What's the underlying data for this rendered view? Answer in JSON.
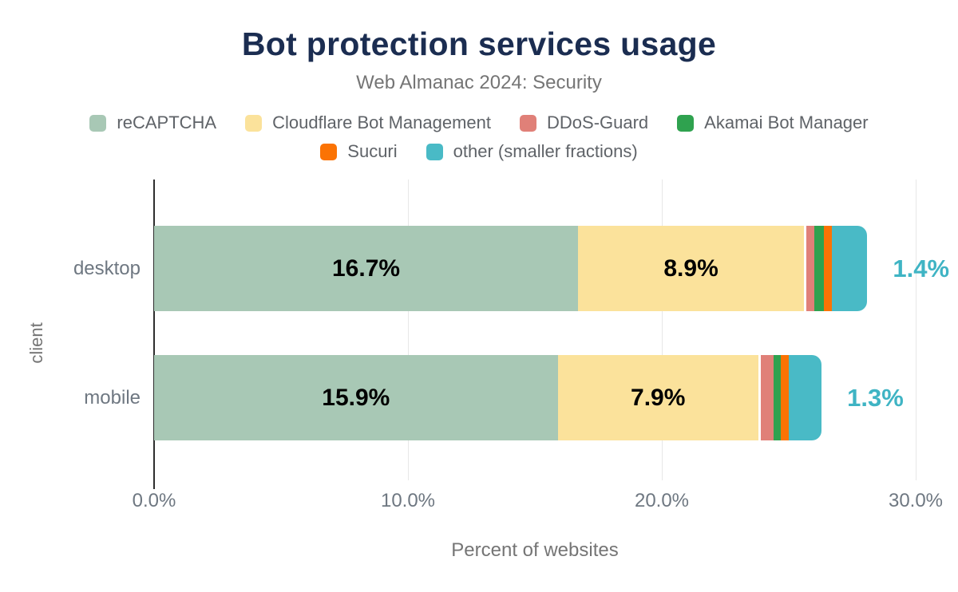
{
  "title": "Bot protection services usage",
  "subtitle": "Web Almanac 2024: Security",
  "x_axis": {
    "label": "Percent of websites",
    "tick_labels": [
      "0.0%",
      "10.0%",
      "20.0%",
      "30.0%"
    ],
    "tick_values": [
      0,
      10,
      20,
      30
    ]
  },
  "y_axis": {
    "label": "client",
    "categories": [
      "desktop",
      "mobile"
    ]
  },
  "colors": {
    "title": "#1b2d51",
    "subtitle": "#757575",
    "tick_text": "#6e7781",
    "legend_text": "#5f6368",
    "axis_line": "#2e2e2e",
    "gridline": "#e7e7e7",
    "inside_label": "#000000",
    "outside_label": "#3fb4c4",
    "background": "#ffffff"
  },
  "chart_data": {
    "type": "bar",
    "orientation": "horizontal",
    "stacked": true,
    "title": "Bot protection services usage",
    "subtitle": "Web Almanac 2024: Security",
    "xlabel": "Percent of websites",
    "ylabel": "client",
    "xlim": [
      0,
      30
    ],
    "grid": "vertical",
    "legend_position": "top",
    "legend_rows": [
      4,
      2
    ],
    "categories": [
      "desktop",
      "mobile"
    ],
    "x_tick_labels": [
      "0.0%",
      "10.0%",
      "20.0%",
      "30.0%"
    ],
    "x_tick_values": [
      0,
      10,
      20,
      30
    ],
    "series": [
      {
        "name": "reCAPTCHA",
        "color": "#a8c8b5",
        "values": [
          16.7,
          15.9
        ]
      },
      {
        "name": "Cloudflare Bot Management",
        "color": "#fbe29b",
        "values": [
          8.9,
          7.9
        ]
      },
      {
        "name": "DDoS-Guard",
        "color": "#e08078",
        "values": [
          0.3,
          0.5
        ]
      },
      {
        "name": "Akamai Bot Manager",
        "color": "#2fa24f",
        "values": [
          0.4,
          0.3
        ]
      },
      {
        "name": "Sucuri",
        "color": "#fb7304",
        "values": [
          0.3,
          0.3
        ]
      },
      {
        "name": "other (smaller fractions)",
        "color": "#49bac6",
        "values": [
          1.4,
          1.3
        ]
      }
    ],
    "value_labels": [
      [
        "16.7%",
        "8.9%",
        null,
        null,
        null,
        "1.4%"
      ],
      [
        "15.9%",
        "7.9%",
        null,
        null,
        null,
        "1.3%"
      ]
    ]
  }
}
